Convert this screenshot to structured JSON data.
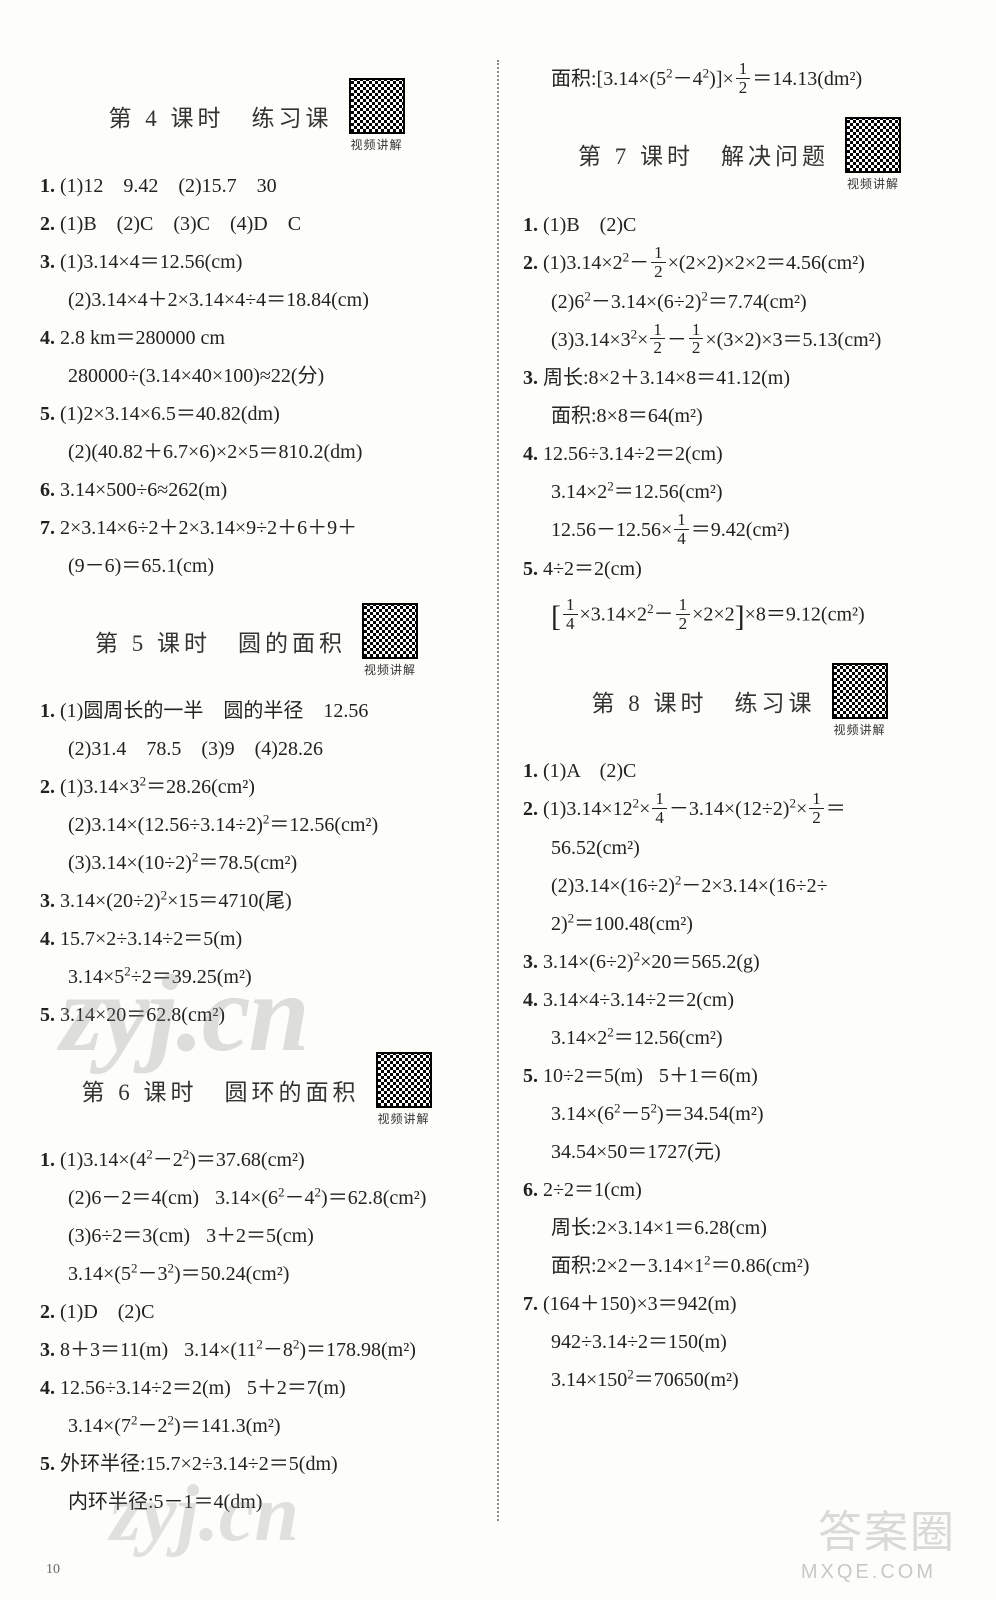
{
  "page_number": "10",
  "watermarks": {
    "w1": "zyj.cn",
    "w2": "zyj.cn",
    "w3": "答案圈",
    "w4": "MXQE.COM"
  },
  "qr_caption": "视频讲解",
  "left": {
    "s4": {
      "title": "第 4 课时　练习课",
      "l1": "(1)12　9.42　(2)15.7　30",
      "l2": "(1)B　(2)C　(3)C　(4)D　C",
      "l3a": "(1)3.14×4＝12.56(cm)",
      "l3b": "(2)3.14×4＋2×3.14×4÷4＝18.84(cm)",
      "l4a": "2.8 km＝280000 cm",
      "l4b": "280000÷(3.14×40×100)≈22(分)",
      "l5a": "(1)2×3.14×6.5＝40.82(dm)",
      "l5b": "(2)(40.82＋6.7×6)×2×5＝810.2(dm)",
      "l6": "3.14×500÷6≈262(m)",
      "l7a": "2×3.14×6÷2＋2×3.14×9÷2＋6＋9＋",
      "l7b": "(9－6)＝65.1(cm)"
    },
    "s5": {
      "title": "第 5 课时　圆的面积",
      "l1a": "(1)圆周长的一半　圆的半径　12.56",
      "l1b": "(2)31.4　78.5　(3)9　(4)28.26",
      "l2a_pre": "(1)3.14×3",
      "l2a_post": "＝28.26(cm²)",
      "l2b_pre": "(2)3.14×(12.56÷3.14÷2)",
      "l2b_post": "＝12.56(cm²)",
      "l2c_pre": "(3)3.14×(10÷2)",
      "l2c_post": "＝78.5(cm²)",
      "l3_pre": "3.14×(20÷2)",
      "l3_post": "×15＝4710(尾)",
      "l4a": "15.7×2÷3.14÷2＝5(m)",
      "l4b_pre": "3.14×5",
      "l4b_post": "÷2＝39.25(m²)",
      "l5": "3.14×20＝62.8(cm²)"
    },
    "s6": {
      "title": "第 6 课时　圆环的面积",
      "l1a_pre": "(1)3.14×(4",
      "l1a_mid": "－2",
      "l1a_post": ")＝37.68(cm²)",
      "l1b_a": "(2)6－2＝4(cm)",
      "l1b_b_pre": "3.14×(6",
      "l1b_b_mid": "－4",
      "l1b_b_post": ")＝62.8(cm²)",
      "l1c_a": "(3)6÷2＝3(cm)",
      "l1c_b": "3＋2＝5(cm)",
      "l1d_pre": "3.14×(5",
      "l1d_mid": "－3",
      "l1d_post": ")＝50.24(cm²)",
      "l2": "(1)D　(2)C",
      "l3_a": "8＋3＝11(m)",
      "l3_b_pre": "3.14×(11",
      "l3_b_mid": "－8",
      "l3_b_post": ")＝178.98(m²)",
      "l4a_a": "12.56÷3.14÷2＝2(m)",
      "l4a_b": "5＋2＝7(m)",
      "l4b_pre": "3.14×(7",
      "l4b_mid": "－2",
      "l4b_post": ")＝141.3(m²)",
      "l5a": "外环半径:15.7×2÷3.14÷2＝5(dm)",
      "l5b": "内环半径:5－1＝4(dm)"
    }
  },
  "right": {
    "top_pre": "面积:[3.14×(5",
    "top_mid": "－4",
    "top_post": ")]×",
    "top_eq": "＝14.13(dm²)",
    "s7": {
      "title": "第 7 课时　解决问题",
      "l1": "(1)B　(2)C",
      "l2a_pre": "(1)3.14×2",
      "l2a_mid": "－",
      "l2a_post": "×(2×2)×2×2＝4.56(cm²)",
      "l2b_pre": "(2)6",
      "l2b_mid": "－3.14×(6÷2)",
      "l2b_post": "＝7.74(cm²)",
      "l2c_pre": "(3)3.14×3",
      "l2c_mid1": "×",
      "l2c_mid2": "－",
      "l2c_post": "×(3×2)×3＝5.13(cm²)",
      "l3a": "周长:8×2＋3.14×8＝41.12(m)",
      "l3b": "面积:8×8＝64(m²)",
      "l4a": "12.56÷3.14÷2＝2(cm)",
      "l4b_pre": "3.14×2",
      "l4b_post": "＝12.56(cm²)",
      "l4c_pre": "12.56－12.56×",
      "l4c_post": "＝9.42(cm²)",
      "l5a": "4÷2＝2(cm)",
      "l5b_pre": "",
      "l5b_mid1": "×3.14×2",
      "l5b_mid2": "－",
      "l5b_post": "×2×2",
      "l5b_eq": "×8＝9.12(cm²)"
    },
    "s8": {
      "title": "第 8 课时　练习课",
      "l1": "(1)A　(2)C",
      "l2a_pre": "(1)3.14×12",
      "l2a_mid1": "×",
      "l2a_mid2": "－3.14×(12÷2)",
      "l2a_mid3": "×",
      "l2a_eq": "＝",
      "l2a2": "56.52(cm²)",
      "l2b_pre": "(2)3.14×(16÷2)",
      "l2b_mid": "－2×3.14×(16÷2÷",
      "l2b2_pre": "2)",
      "l2b2_post": "＝100.48(cm²)",
      "l3_pre": "3.14×(6÷2)",
      "l3_post": "×20＝565.2(g)",
      "l4a": "3.14×4÷3.14÷2＝2(cm)",
      "l4b_pre": "3.14×2",
      "l4b_post": "＝12.56(cm²)",
      "l5a_a": "10÷2＝5(m)",
      "l5a_b": "5＋1＝6(m)",
      "l5b_pre": "3.14×(6",
      "l5b_mid": "－5",
      "l5b_post": ")＝34.54(m²)",
      "l5c": "34.54×50＝1727(元)",
      "l6a": "2÷2＝1(cm)",
      "l6b": "周长:2×3.14×1＝6.28(cm)",
      "l6c_pre": "面积:2×2－3.14×1",
      "l6c_post": "＝0.86(cm²)",
      "l7a": "(164＋150)×3＝942(m)",
      "l7b": "942÷3.14÷2＝150(m)",
      "l7c_pre": "3.14×150",
      "l7c_post": "＝70650(m²)"
    }
  }
}
